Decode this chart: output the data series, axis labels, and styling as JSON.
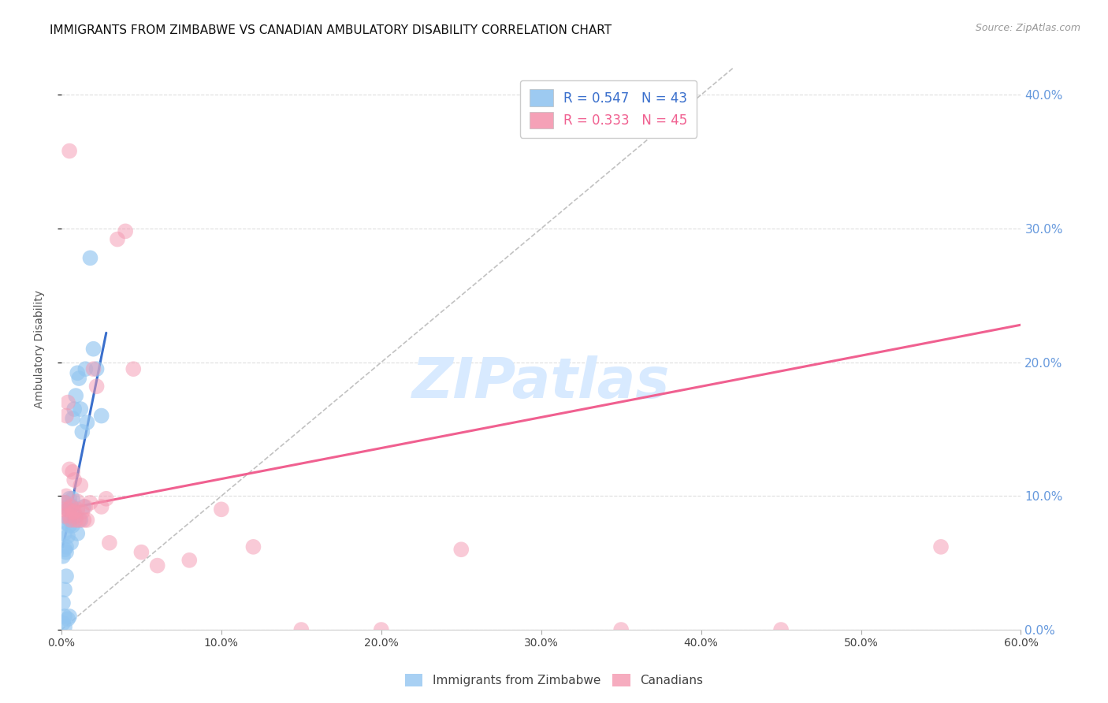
{
  "title": "IMMIGRANTS FROM ZIMBABWE VS CANADIAN AMBULATORY DISABILITY CORRELATION CHART",
  "source": "Source: ZipAtlas.com",
  "ylabel": "Ambulatory Disability",
  "xlim": [
    0.0,
    0.6
  ],
  "ylim": [
    0.0,
    0.42
  ],
  "x_ticks": [
    0.0,
    0.1,
    0.2,
    0.3,
    0.4,
    0.5,
    0.6
  ],
  "x_tick_labels": [
    "0.0%",
    "10.0%",
    "20.0%",
    "30.0%",
    "40.0%",
    "50.0%",
    "60.0%"
  ],
  "y_ticks": [
    0.0,
    0.1,
    0.2,
    0.3,
    0.4
  ],
  "y_tick_labels_right": [
    "0.0%",
    "10.0%",
    "20.0%",
    "30.0%",
    "40.0%"
  ],
  "legend_r1": "R = 0.547   N = 43",
  "legend_r2": "R = 0.333   N = 45",
  "blue_color": "#92C5F0",
  "pink_color": "#F497B0",
  "blue_line_color": "#3A6FCC",
  "pink_line_color": "#F06090",
  "diagonal_color": "#BBBBBB",
  "background_color": "#FFFFFF",
  "grid_color": "#DDDDDD",
  "right_tick_color": "#6699DD",
  "watermark_text": "ZIPatlas",
  "watermark_color": "#D8EAFF",
  "blue_x": [
    0.001,
    0.001,
    0.001,
    0.002,
    0.002,
    0.002,
    0.002,
    0.002,
    0.003,
    0.003,
    0.003,
    0.003,
    0.004,
    0.004,
    0.004,
    0.005,
    0.005,
    0.005,
    0.006,
    0.006,
    0.007,
    0.007,
    0.008,
    0.009,
    0.01,
    0.011,
    0.012,
    0.013,
    0.015,
    0.016,
    0.018,
    0.02,
    0.022,
    0.025,
    0.003,
    0.004,
    0.005,
    0.006,
    0.007,
    0.009,
    0.01,
    0.012,
    0.014
  ],
  "blue_y": [
    0.005,
    0.02,
    0.055,
    0.01,
    0.03,
    0.06,
    0.002,
    0.072,
    0.062,
    0.058,
    0.04,
    0.08,
    0.07,
    0.008,
    0.09,
    0.082,
    0.078,
    0.01,
    0.093,
    0.065,
    0.098,
    0.078,
    0.165,
    0.175,
    0.192,
    0.188,
    0.165,
    0.148,
    0.195,
    0.155,
    0.278,
    0.21,
    0.195,
    0.16,
    0.095,
    0.092,
    0.098,
    0.092,
    0.158,
    0.085,
    0.072,
    0.082,
    0.092
  ],
  "pink_x": [
    0.001,
    0.002,
    0.002,
    0.003,
    0.003,
    0.004,
    0.004,
    0.005,
    0.005,
    0.006,
    0.006,
    0.007,
    0.007,
    0.008,
    0.008,
    0.009,
    0.01,
    0.01,
    0.011,
    0.012,
    0.013,
    0.014,
    0.015,
    0.016,
    0.018,
    0.02,
    0.022,
    0.025,
    0.028,
    0.03,
    0.035,
    0.04,
    0.045,
    0.05,
    0.06,
    0.08,
    0.1,
    0.12,
    0.15,
    0.2,
    0.25,
    0.35,
    0.45,
    0.55,
    0.005
  ],
  "pink_y": [
    0.09,
    0.085,
    0.095,
    0.1,
    0.16,
    0.09,
    0.17,
    0.085,
    0.12,
    0.092,
    0.082,
    0.118,
    0.088,
    0.112,
    0.088,
    0.082,
    0.096,
    0.09,
    0.082,
    0.108,
    0.088,
    0.082,
    0.092,
    0.082,
    0.095,
    0.195,
    0.182,
    0.092,
    0.098,
    0.065,
    0.292,
    0.298,
    0.195,
    0.058,
    0.048,
    0.052,
    0.09,
    0.062,
    0.0,
    0.0,
    0.06,
    0.0,
    0.0,
    0.062,
    0.358
  ],
  "blue_line_x": [
    0.001,
    0.028
  ],
  "blue_line_y": [
    0.062,
    0.222
  ],
  "pink_line_x": [
    0.001,
    0.6
  ],
  "pink_line_y": [
    0.09,
    0.228
  ],
  "diagonal_line_x": [
    0.0,
    0.42
  ],
  "diagonal_line_y": [
    0.0,
    0.42
  ]
}
